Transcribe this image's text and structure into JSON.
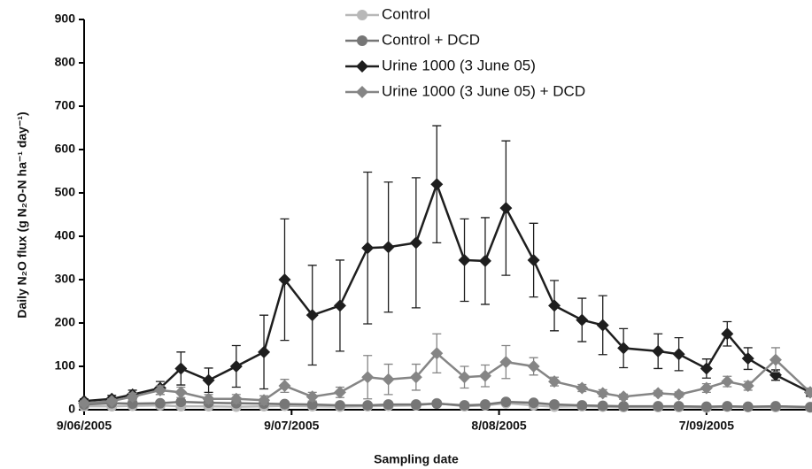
{
  "chart_data": {
    "type": "line",
    "x_label": "Sampling date",
    "y_label": "Daily N₂O flux (g N₂O-N ha⁻¹ day⁻¹)",
    "x": [
      "2005-06-09",
      "2005-06-13",
      "2005-06-16",
      "2005-06-20",
      "2005-06-23",
      "2005-06-27",
      "2005-07-01",
      "2005-07-05",
      "2005-07-08",
      "2005-07-12",
      "2005-07-16",
      "2005-07-20",
      "2005-07-23",
      "2005-07-27",
      "2005-07-30",
      "2005-08-03",
      "2005-08-06",
      "2005-08-09",
      "2005-08-13",
      "2005-08-16",
      "2005-08-20",
      "2005-08-23",
      "2005-08-26",
      "2005-08-31",
      "2005-09-03",
      "2005-09-07",
      "2005-09-10",
      "2005-09-13",
      "2005-09-17",
      "2005-09-22"
    ],
    "xlim": [
      "2005-06-09",
      "2005-09-22"
    ],
    "xticks": [
      {
        "value": "2005-06-09",
        "label": "9/06/2005"
      },
      {
        "value": "2005-07-09",
        "label": "9/07/2005"
      },
      {
        "value": "2005-08-08",
        "label": "8/08/2005"
      },
      {
        "value": "2005-09-07",
        "label": "7/09/2005"
      }
    ],
    "ylim": [
      0,
      900
    ],
    "yticks": [
      0,
      100,
      200,
      300,
      400,
      500,
      600,
      700,
      800,
      900
    ],
    "series": [
      {
        "name": "Control",
        "color": "#b8b8b8",
        "marker": "circle",
        "values": [
          8,
          8,
          9,
          10,
          8,
          8,
          7,
          8,
          9,
          8,
          7,
          8,
          9,
          10,
          15,
          8,
          10,
          15,
          10,
          7,
          8,
          7,
          6,
          6,
          6,
          5,
          7,
          6,
          6,
          5
        ]
      },
      {
        "name": "Control + DCD",
        "color": "#767676",
        "marker": "circle",
        "values": [
          12,
          15,
          14,
          15,
          18,
          16,
          15,
          14,
          13,
          12,
          10,
          10,
          12,
          12,
          14,
          10,
          12,
          18,
          16,
          12,
          10,
          9,
          8,
          8,
          8,
          7,
          8,
          7,
          8,
          6
        ]
      },
      {
        "name": "Urine 1000 (3 June 05)",
        "color": "#1e1e1e",
        "marker": "diamond",
        "values": [
          20,
          25,
          35,
          50,
          95,
          68,
          100,
          133,
          300,
          218,
          240,
          373,
          375,
          385,
          520,
          345,
          343,
          465,
          345,
          240,
          207,
          195,
          142,
          135,
          128,
          95,
          175,
          118,
          80,
          40
        ],
        "errors": [
          5,
          8,
          10,
          15,
          38,
          28,
          48,
          85,
          140,
          115,
          105,
          175,
          150,
          150,
          135,
          95,
          100,
          155,
          85,
          58,
          50,
          68,
          45,
          40,
          38,
          22,
          28,
          25,
          12,
          8
        ]
      },
      {
        "name": "Urine 1000 (3 June 05) + DCD",
        "color": "#858585",
        "marker": "diamond",
        "values": [
          15,
          20,
          30,
          45,
          40,
          25,
          25,
          22,
          55,
          30,
          40,
          75,
          70,
          75,
          130,
          75,
          78,
          110,
          100,
          65,
          50,
          38,
          30,
          38,
          35,
          50,
          65,
          55,
          115,
          40
        ],
        "errors": [
          5,
          5,
          8,
          10,
          12,
          10,
          10,
          10,
          15,
          10,
          12,
          50,
          35,
          30,
          45,
          25,
          25,
          38,
          20,
          10,
          8,
          8,
          6,
          6,
          6,
          10,
          12,
          10,
          28,
          10
        ]
      }
    ]
  }
}
